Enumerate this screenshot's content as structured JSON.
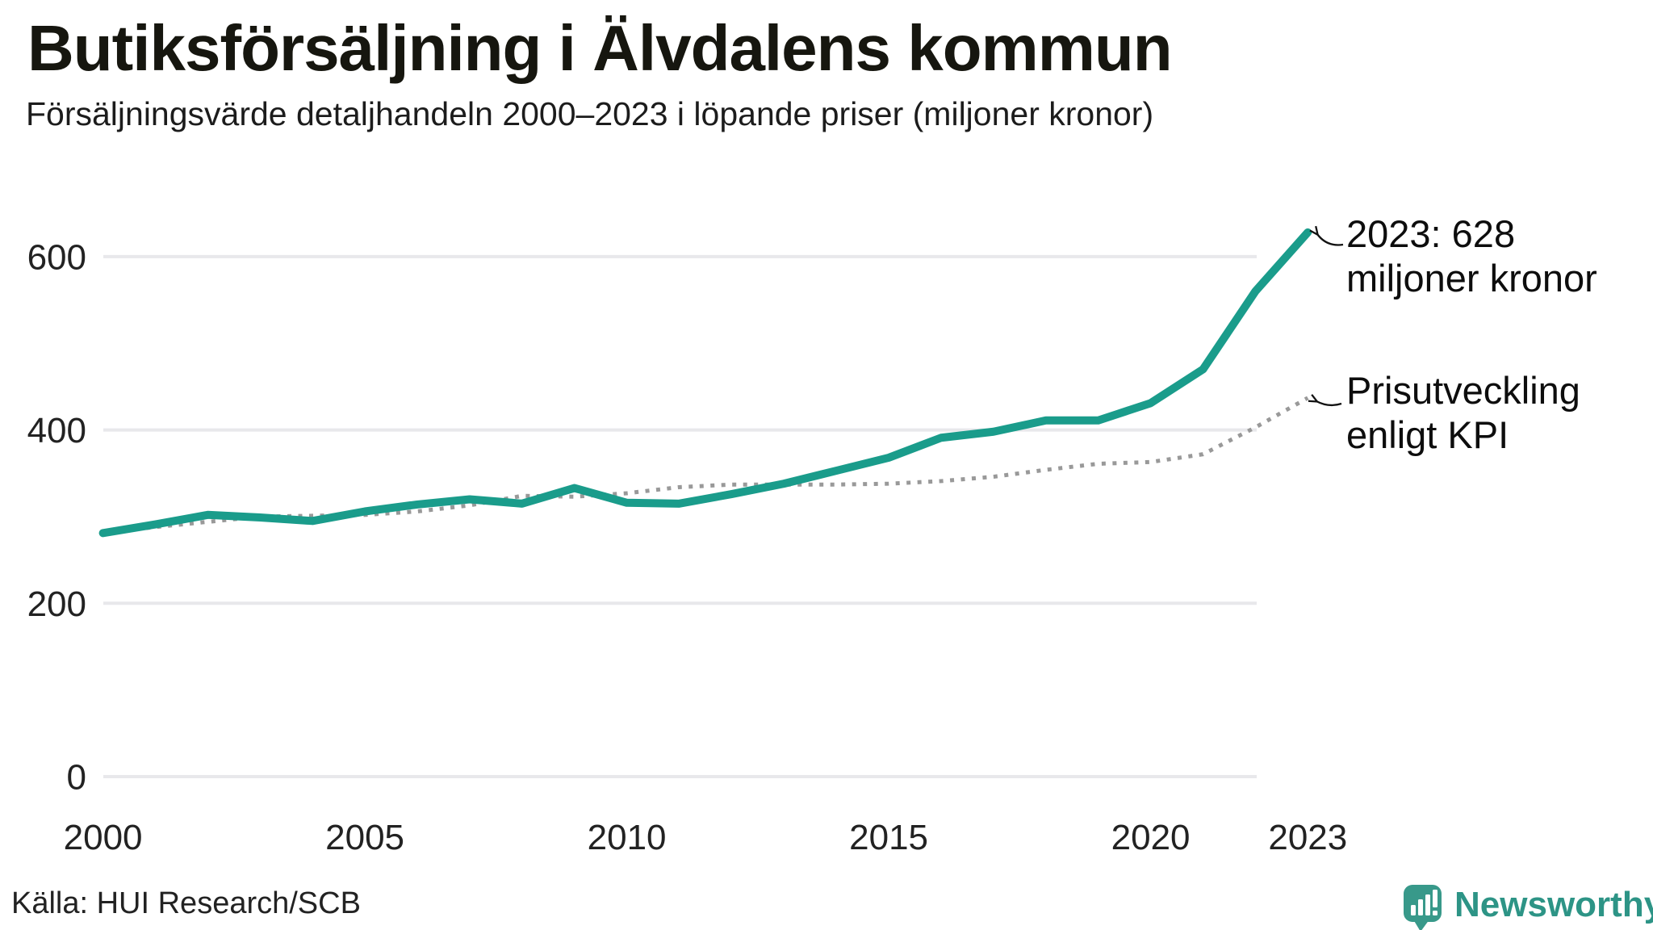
{
  "header": {
    "title": "Butiksförsäljning i Älvdalens kommun",
    "subtitle": "Försäljningsvärde detaljhandeln 2000–2023 i löpande priser (miljoner kronor)"
  },
  "annotations": {
    "latest": {
      "line1": "2023: 628",
      "line2": "miljoner kronor"
    },
    "kpi": {
      "line1": "Prisutveckling",
      "line2": "enligt KPI"
    }
  },
  "source": {
    "label": "Källa: HUI Research/SCB"
  },
  "logo": {
    "text": "Newsworthy"
  },
  "colors": {
    "sales_line": "#1a9c8b",
    "kpi_line": "#999999",
    "grid": "#e8e8eb",
    "logo_mark": "#38998a",
    "logo_text": "#2d9486",
    "annotation_arrow": "#111111"
  },
  "chart_data": {
    "type": "line",
    "title": "Butiksförsäljning i Älvdalens kommun",
    "subtitle": "Försäljningsvärde detaljhandeln 2000–2023 i löpande priser (miljoner kronor)",
    "xlabel": "",
    "ylabel": "miljoner kronor",
    "ylim": [
      0,
      650
    ],
    "yticks": [
      0,
      200,
      400,
      600
    ],
    "xticks": [
      2000,
      2005,
      2010,
      2015,
      2020,
      2023
    ],
    "grid": "horizontal",
    "legend_position": "annotated-right",
    "x": [
      2000,
      2001,
      2002,
      2003,
      2004,
      2005,
      2006,
      2007,
      2008,
      2009,
      2010,
      2011,
      2012,
      2013,
      2014,
      2015,
      2016,
      2017,
      2018,
      2019,
      2020,
      2021,
      2022,
      2023
    ],
    "series": [
      {
        "name": "Försäljningsvärde i löpande priser",
        "style": "solid",
        "annotation": "2023: 628 miljoner kronor",
        "values": [
          281,
          291,
          302,
          299,
          295,
          306,
          314,
          320,
          315,
          333,
          316,
          315,
          326,
          338,
          353,
          368,
          391,
          398,
          411,
          411,
          431,
          470,
          560,
          628
        ]
      },
      {
        "name": "Prisutveckling enligt KPI",
        "style": "dotted",
        "values": [
          281,
          288,
          294,
          300,
          301,
          302,
          306,
          313,
          324,
          323,
          327,
          334,
          337,
          337,
          337,
          338,
          341,
          346,
          354,
          361,
          363,
          372,
          403,
          437
        ]
      }
    ]
  }
}
